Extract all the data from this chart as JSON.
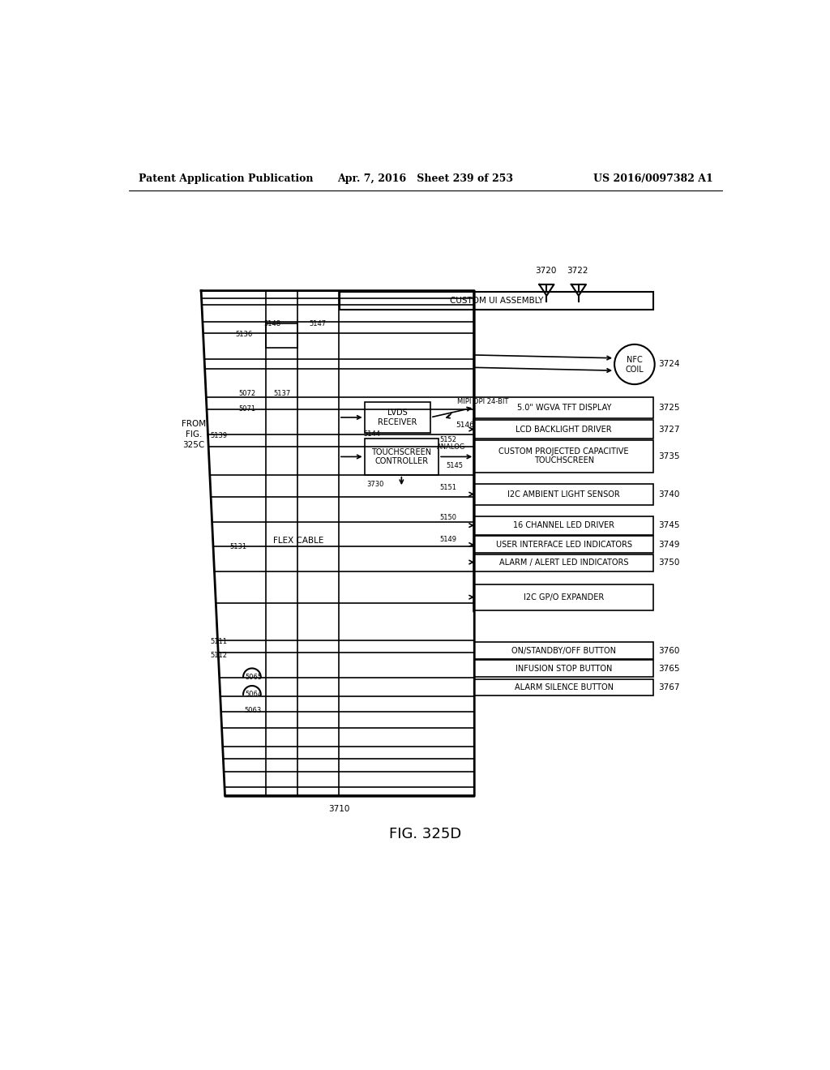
{
  "bg_color": "#ffffff",
  "header_left": "Patent Application Publication",
  "header_mid": "Apr. 7, 2016   Sheet 239 of 253",
  "header_right": "US 2016/0097382 A1",
  "figure_label": "FIG. 325D",
  "fig_num_label": "3710",
  "title_box_label": "CUSTOM UI ASSEMBLY",
  "from_label": "FROM\nFIG.\n325C",
  "flex_cable_label": "FLEX CABLE",
  "right_boxes": [
    {
      "label": "5.0\" WGVA TFT DISPLAY",
      "ref": "3725"
    },
    {
      "label": "LCD BACKLIGHT DRIVER",
      "ref": "3727"
    },
    {
      "label": "CUSTOM PROJECTED CAPACITIVE\nTOUCHSCREEN",
      "ref": "3735"
    },
    {
      "label": "I2C AMBIENT LIGHT SENSOR",
      "ref": "3740"
    },
    {
      "label": "16 CHANNEL LED DRIVER",
      "ref": "3745"
    },
    {
      "label": "USER INTERFACE LED INDICATORS",
      "ref": "3749"
    },
    {
      "label": "ALARM / ALERT LED INDICATORS",
      "ref": "3750"
    },
    {
      "label": "I2C GP/O EXPANDER",
      "ref": ""
    },
    {
      "label": "ON/STANDBY/OFF BUTTON",
      "ref": "3760"
    },
    {
      "label": "INFUSION STOP BUTTON",
      "ref": "3765"
    },
    {
      "label": "ALARM SILENCE BUTTON",
      "ref": "3767"
    }
  ],
  "lvds_label": "LVDS\nRECEIVER",
  "tc_label": "TOUCHSCREEN\nCONTROLLER",
  "nfc_label_top": "NFC",
  "nfc_label_bot": "COIL"
}
